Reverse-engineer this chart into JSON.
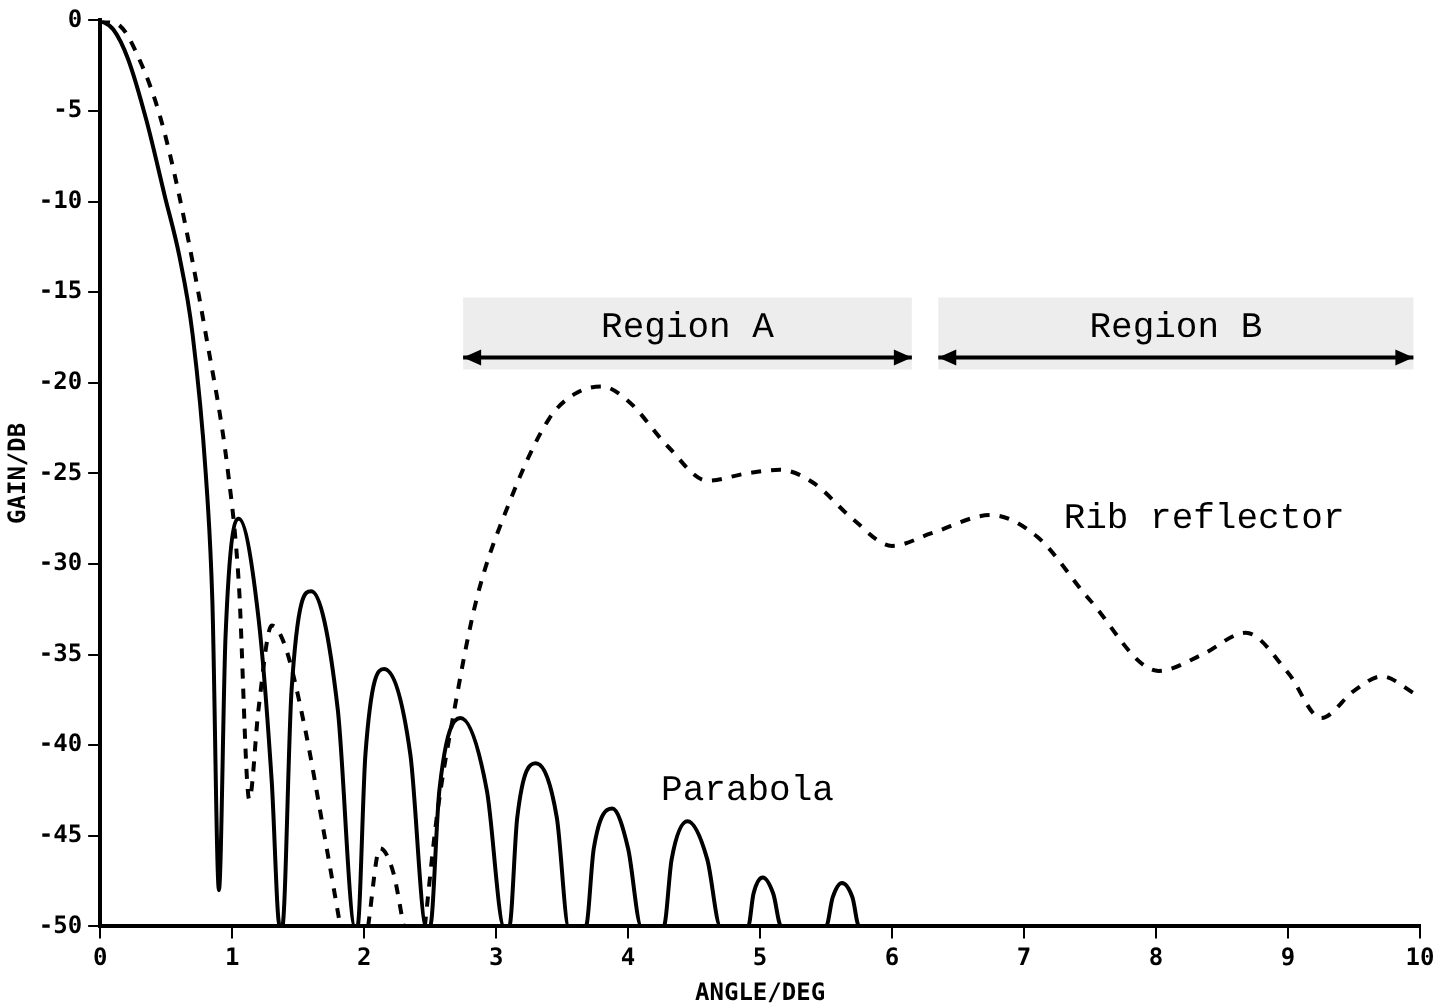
{
  "chart_data": {
    "type": "line",
    "xlabel": "ANGLE/DEG",
    "ylabel": "GAIN/DB",
    "xlim": [
      0,
      10
    ],
    "xticks": [
      0,
      1,
      2,
      3,
      4,
      5,
      6,
      7,
      8,
      9,
      10
    ],
    "ylim": [
      -50,
      0
    ],
    "yticks": [
      0,
      -5,
      -10,
      -15,
      -20,
      -25,
      -30,
      -35,
      -40,
      -45,
      -50
    ],
    "grid": false,
    "legend": false,
    "marker": "none",
    "series": [
      {
        "name": "Parabola",
        "color": "#000000",
        "line_style": "solid",
        "x": [
          0,
          0.1,
          0.21,
          0.35,
          0.49,
          0.6,
          0.7,
          0.8,
          0.85,
          0.9,
          0.95,
          1.05,
          1.2,
          1.3,
          1.36,
          1.38,
          1.45,
          1.6,
          1.8,
          1.93,
          1.95,
          2.01,
          2.15,
          2.35,
          2.47,
          2.5,
          2.57,
          2.73,
          2.93,
          3.06,
          3.1,
          3.16,
          3.3,
          3.46,
          3.55,
          3.68,
          3.74,
          3.88,
          4.0,
          4.1,
          4.27,
          4.33,
          4.45,
          4.6,
          4.7,
          4.91,
          4.95,
          5.02,
          5.1,
          5.16,
          5.5,
          5.55,
          5.62,
          5.7,
          5.75,
          10
        ],
        "values": [
          0,
          -0.5,
          -2.1,
          -5.5,
          -9.7,
          -13,
          -17.3,
          -25,
          -32,
          -48,
          -34,
          -27.5,
          -33,
          -42,
          -50,
          -50,
          -37,
          -31.5,
          -38,
          -50,
          -50,
          -40.5,
          -35.8,
          -40.5,
          -50,
          -50,
          -42.5,
          -38.5,
          -42.5,
          -50,
          -50,
          -44,
          -41,
          -44,
          -50,
          -50,
          -45.7,
          -43.5,
          -45.7,
          -50,
          -50,
          -46.3,
          -44.2,
          -46.3,
          -50,
          -50,
          -48.2,
          -47.3,
          -48.2,
          -50,
          -50,
          -48.4,
          -47.6,
          -48.4,
          -50,
          -50
        ]
      },
      {
        "name": "Rib reflector",
        "color": "#000000",
        "line_style": "dashed",
        "x": [
          0,
          0.15,
          0.3,
          0.45,
          0.6,
          0.8,
          0.97,
          1.05,
          1.13,
          1.2,
          1.3,
          1.4,
          1.55,
          1.7,
          1.82,
          1.9,
          2.03,
          2.12,
          2.22,
          2.3,
          2.38,
          2.46,
          2.55,
          2.68,
          2.85,
          3.09,
          3.4,
          3.6,
          3.8,
          4.0,
          4.3,
          4.6,
          4.9,
          5.15,
          5.4,
          5.7,
          6.0,
          6.3,
          6.75,
          7.1,
          7.5,
          8.02,
          8.35,
          8.68,
          9.0,
          9.25,
          9.5,
          9.71,
          9.97
        ],
        "values": [
          0,
          -0.3,
          -2.2,
          -5.2,
          -9.7,
          -17.3,
          -25,
          -31,
          -43,
          -38,
          -33.4,
          -34.5,
          -39,
          -45,
          -50,
          null,
          -50,
          -45.7,
          -47,
          -50,
          null,
          -50,
          -44,
          -38.2,
          -32,
          -26.8,
          -22,
          -20.6,
          -20.2,
          -21,
          -23.5,
          -25.4,
          -25,
          -24.8,
          -25.5,
          -27.5,
          -29,
          -28.3,
          -27.3,
          -28.5,
          -32,
          -35.9,
          -35,
          -33.8,
          -36,
          -38.5,
          -37,
          -36.2,
          -37.2
        ]
      }
    ],
    "bands": [
      {
        "axis": "x",
        "from": 2.75,
        "to": 6.15,
        "label": "Region A",
        "color": "#000000"
      },
      {
        "axis": "x",
        "from": 6.35,
        "to": 9.95,
        "label": "Region B",
        "color": "#000000"
      }
    ]
  }
}
